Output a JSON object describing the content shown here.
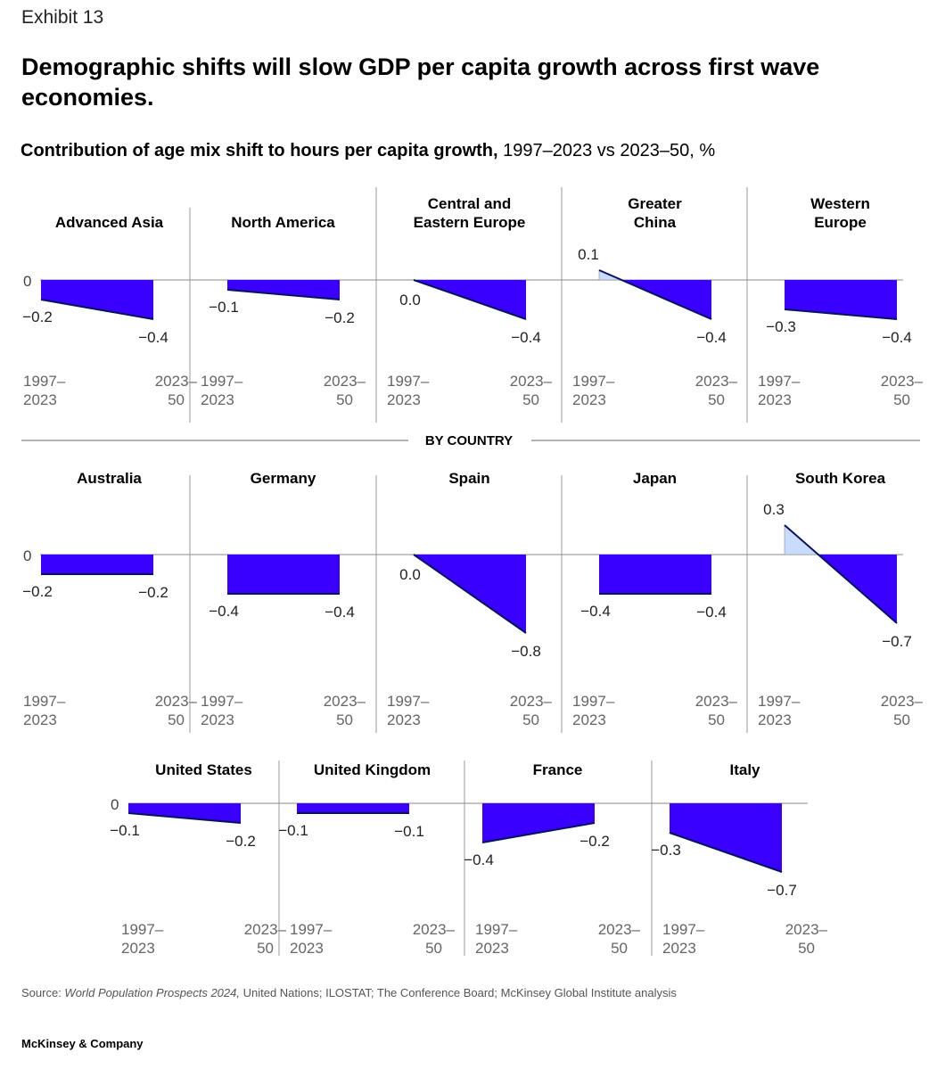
{
  "header": {
    "exhibit": "Exhibit 13",
    "title": "Demographic shifts will slow GDP per capita growth across first wave economies.",
    "subtitle_bold": "Contribution of age mix shift to hours per capita growth,",
    "subtitle_rest": " 1997–2023 vs 2023–50, %"
  },
  "section_label": "BY COUNTRY",
  "footer": {
    "source_prefix": "Source: ",
    "source_italic": "World Population Prospects 2024,",
    "source_rest": " United Nations; ILOSTAT; The Conference Board; McKinsey Global Institute analysis",
    "company": "McKinsey & Company"
  },
  "colors": {
    "negative_fill": "#3a00ff",
    "positive_fill": "#c9dcff",
    "line": "#05145a",
    "divider": "#999999",
    "baseline": "#888888"
  },
  "chart_data": {
    "type": "area",
    "zero_label": "0",
    "x_start_label": [
      "1997–",
      "2023"
    ],
    "x_end_label": [
      "2023–",
      "50"
    ],
    "periods": [
      "1997–2023",
      "2023–50"
    ],
    "ylim": [
      -0.8,
      0.3
    ],
    "rows": [
      {
        "name": "regions",
        "panels": [
          {
            "title": [
              "Advanced Asia"
            ],
            "values": [
              -0.2,
              -0.4
            ],
            "labels": [
              "−0.2",
              "−0.4"
            ]
          },
          {
            "title": [
              "North America"
            ],
            "values": [
              -0.1,
              -0.2
            ],
            "labels": [
              "−0.1",
              "−0.2"
            ]
          },
          {
            "title": [
              "Central and",
              "Eastern Europe"
            ],
            "values": [
              0.0,
              -0.4
            ],
            "labels": [
              "0.0",
              "−0.4"
            ]
          },
          {
            "title": [
              "Greater",
              "China"
            ],
            "values": [
              0.1,
              -0.4
            ],
            "labels": [
              "0.1",
              "−0.4"
            ]
          },
          {
            "title": [
              "Western",
              "Europe"
            ],
            "values": [
              -0.3,
              -0.4
            ],
            "labels": [
              "−0.3",
              "−0.4"
            ]
          }
        ]
      },
      {
        "name": "countries-1",
        "panels": [
          {
            "title": [
              "Australia"
            ],
            "values": [
              -0.2,
              -0.2
            ],
            "labels": [
              "−0.2",
              "−0.2"
            ]
          },
          {
            "title": [
              "Germany"
            ],
            "values": [
              -0.4,
              -0.4
            ],
            "labels": [
              "−0.4",
              "−0.4"
            ]
          },
          {
            "title": [
              "Spain"
            ],
            "values": [
              0.0,
              -0.8
            ],
            "labels": [
              "0.0",
              "−0.8"
            ]
          },
          {
            "title": [
              "Japan"
            ],
            "values": [
              -0.4,
              -0.4
            ],
            "labels": [
              "−0.4",
              "−0.4"
            ]
          },
          {
            "title": [
              "South Korea"
            ],
            "values": [
              0.3,
              -0.7
            ],
            "labels": [
              "0.3",
              "−0.7"
            ]
          }
        ]
      },
      {
        "name": "countries-2",
        "panels": [
          {
            "title": [
              "United States"
            ],
            "values": [
              -0.1,
              -0.2
            ],
            "labels": [
              "−0.1",
              "−0.2"
            ]
          },
          {
            "title": [
              "United Kingdom"
            ],
            "values": [
              -0.1,
              -0.1
            ],
            "labels": [
              "−0.1",
              "−0.1"
            ]
          },
          {
            "title": [
              "France"
            ],
            "values": [
              -0.4,
              -0.2
            ],
            "labels": [
              "−0.4",
              "−0.2"
            ]
          },
          {
            "title": [
              "Italy"
            ],
            "values": [
              -0.3,
              -0.7
            ],
            "labels": [
              "−0.3",
              "−0.7"
            ]
          }
        ]
      }
    ]
  }
}
